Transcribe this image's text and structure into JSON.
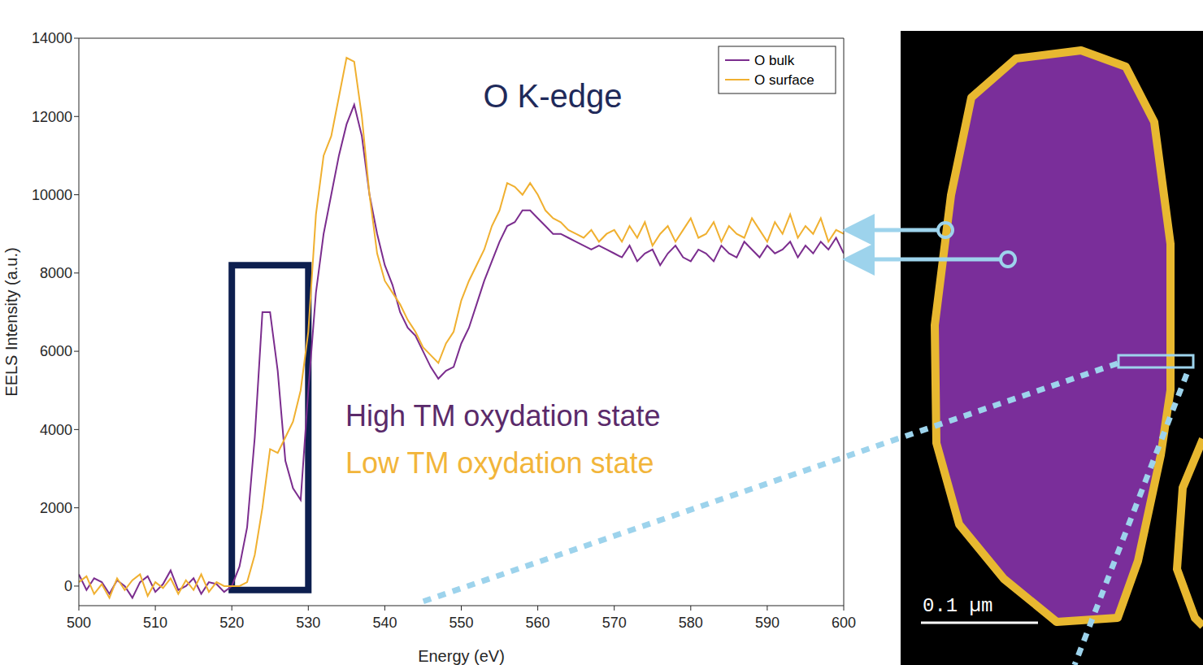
{
  "chart_data": {
    "type": "line",
    "title": "O K-edge",
    "x_label": "Energy (eV)",
    "y_label": "EELS Intensity (a.u.)",
    "x": [
      500,
      501,
      502,
      503,
      504,
      505,
      506,
      507,
      508,
      509,
      510,
      511,
      512,
      513,
      514,
      515,
      516,
      517,
      518,
      519,
      520,
      521,
      522,
      523,
      524,
      525,
      526,
      527,
      528,
      529,
      530,
      531,
      532,
      533,
      534,
      535,
      536,
      537,
      538,
      539,
      540,
      541,
      542,
      543,
      544,
      545,
      546,
      547,
      548,
      549,
      550,
      551,
      552,
      553,
      554,
      555,
      556,
      557,
      558,
      559,
      560,
      561,
      562,
      563,
      564,
      565,
      566,
      567,
      568,
      569,
      570,
      571,
      572,
      573,
      574,
      575,
      576,
      577,
      578,
      579,
      580,
      581,
      582,
      583,
      584,
      585,
      586,
      587,
      588,
      589,
      590,
      591,
      592,
      593,
      594,
      595,
      596,
      597,
      598,
      599,
      600
    ],
    "series": [
      {
        "name": "O bulk",
        "color": "#7b2d8e",
        "values": [
          300,
          -100,
          200,
          100,
          -200,
          150,
          0,
          -300,
          100,
          250,
          -150,
          50,
          400,
          -100,
          0,
          200,
          -200,
          100,
          50,
          -150,
          0,
          500,
          1500,
          3800,
          7000,
          7000,
          5500,
          3200,
          2500,
          2200,
          5000,
          7500,
          9000,
          10000,
          11000,
          11800,
          12300,
          11500,
          10000,
          9000,
          8200,
          7700,
          7000,
          6600,
          6400,
          6000,
          5600,
          5300,
          5500,
          5600,
          6200,
          6600,
          7200,
          7800,
          8300,
          8800,
          9200,
          9300,
          9600,
          9600,
          9400,
          9200,
          9000,
          9000,
          8900,
          8800,
          8700,
          8600,
          8700,
          8600,
          8500,
          8400,
          8700,
          8300,
          8500,
          8600,
          8200,
          8500,
          8700,
          8400,
          8300,
          8600,
          8500,
          8300,
          8700,
          8500,
          8400,
          8800,
          8600,
          8400,
          8700,
          8500,
          8600,
          8800,
          8400,
          8700,
          8500,
          8800,
          8600,
          8900,
          8500
        ]
      },
      {
        "name": "O surface",
        "color": "#f0b030",
        "values": [
          100,
          250,
          -200,
          50,
          -300,
          200,
          -100,
          150,
          300,
          -250,
          100,
          -50,
          200,
          -200,
          150,
          -100,
          300,
          -150,
          100,
          0,
          0,
          0,
          100,
          800,
          2000,
          3500,
          3400,
          3800,
          4200,
          5000,
          6500,
          9500,
          11000,
          11500,
          12500,
          13500,
          13400,
          12000,
          10000,
          8500,
          7800,
          7500,
          7200,
          6800,
          6500,
          6100,
          5900,
          5700,
          6200,
          6500,
          7300,
          7800,
          8200,
          8600,
          9200,
          9600,
          10300,
          10200,
          10000,
          10300,
          10000,
          9600,
          9400,
          9300,
          9100,
          9000,
          8900,
          9100,
          8800,
          9000,
          9100,
          8800,
          9200,
          8900,
          9300,
          8700,
          9000,
          9200,
          8800,
          9100,
          9400,
          8900,
          9000,
          9300,
          8800,
          9200,
          9000,
          8900,
          9400,
          9100,
          8800,
          9300,
          9000,
          9500,
          8900,
          9200,
          9000,
          9400,
          8800,
          9100,
          9000
        ]
      }
    ],
    "xlim": [
      500,
      600
    ],
    "xticks": [
      500,
      510,
      520,
      530,
      540,
      550,
      560,
      570,
      580,
      590,
      600
    ],
    "ylim": [
      -500,
      14000
    ],
    "yticks": [
      0,
      2000,
      4000,
      6000,
      8000,
      10000,
      12000,
      14000
    ],
    "grid": false,
    "legend": "upper right",
    "annotations": [
      {
        "text": "High TM oxydation state",
        "color": "#5a2a6a"
      },
      {
        "text": "Low TM oxydation state",
        "color": "#f2b53a"
      }
    ],
    "highlight": {
      "x": [
        520,
        530
      ],
      "y": [
        -100,
        8200
      ]
    },
    "scale_bar_label": "0.1 µm"
  }
}
